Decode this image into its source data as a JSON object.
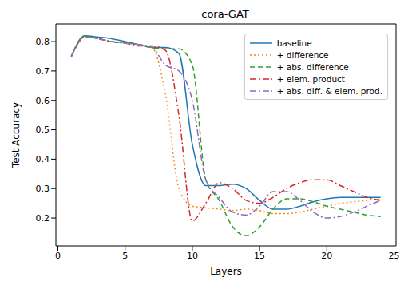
{
  "chart_data": {
    "type": "line",
    "title": "cora-GAT",
    "x_label": "Layers",
    "y_label": "Test Accuracy",
    "x": [
      1,
      2,
      3,
      4,
      5,
      6,
      7,
      8,
      9,
      10,
      11,
      12,
      13,
      14,
      15,
      16,
      17,
      18,
      19,
      20,
      21,
      22,
      23,
      24
    ],
    "xlim": [
      -0.15,
      25.15
    ],
    "xticks": [
      0,
      5,
      10,
      15,
      20,
      25
    ],
    "ylim": [
      0.105,
      0.86
    ],
    "yticks": [
      0.2,
      0.3,
      0.4,
      0.5,
      0.6,
      0.7,
      0.8
    ],
    "grid": false,
    "legend": "upper right",
    "series": [
      {
        "name": "baseline",
        "color": "#1f77b4",
        "line_style": "solid",
        "values": [
          0.75,
          0.82,
          0.815,
          0.81,
          0.8,
          0.79,
          0.78,
          0.78,
          0.76,
          0.45,
          0.31,
          0.31,
          0.315,
          0.3,
          0.26,
          0.23,
          0.23,
          0.24,
          0.255,
          0.265,
          0.27,
          0.27,
          0.27,
          0.27
        ]
      },
      {
        "name": "+ difference",
        "color": "#ff7f0e",
        "line_style": "dotted",
        "values": [
          0.75,
          0.815,
          0.81,
          0.8,
          0.795,
          0.79,
          0.78,
          0.62,
          0.3,
          0.24,
          0.235,
          0.23,
          0.225,
          0.23,
          0.225,
          0.215,
          0.215,
          0.22,
          0.23,
          0.24,
          0.25,
          0.255,
          0.26,
          0.265
        ]
      },
      {
        "name": "+ abs. difference",
        "color": "#2ca02c",
        "line_style": "dashed",
        "values": [
          0.75,
          0.82,
          0.81,
          0.8,
          0.795,
          0.79,
          0.78,
          0.775,
          0.775,
          0.72,
          0.33,
          0.26,
          0.17,
          0.14,
          0.17,
          0.23,
          0.265,
          0.265,
          0.255,
          0.24,
          0.23,
          0.22,
          0.21,
          0.205
        ]
      },
      {
        "name": "+ elem. product",
        "color": "#d62728",
        "line_style": "dashdot",
        "values": [
          0.75,
          0.815,
          0.81,
          0.8,
          0.795,
          0.785,
          0.785,
          0.77,
          0.55,
          0.19,
          0.25,
          0.32,
          0.3,
          0.26,
          0.25,
          0.27,
          0.3,
          0.32,
          0.33,
          0.33,
          0.31,
          0.29,
          0.27,
          0.26
        ]
      },
      {
        "name": "+ abs. diff. & elem. prod.",
        "color": "#9467bd",
        "line_style": "dashdot",
        "values": [
          0.75,
          0.815,
          0.81,
          0.8,
          0.795,
          0.79,
          0.78,
          0.72,
          0.7,
          0.6,
          0.33,
          0.27,
          0.22,
          0.21,
          0.24,
          0.29,
          0.29,
          0.26,
          0.22,
          0.2,
          0.205,
          0.22,
          0.24,
          0.26
        ]
      }
    ]
  }
}
